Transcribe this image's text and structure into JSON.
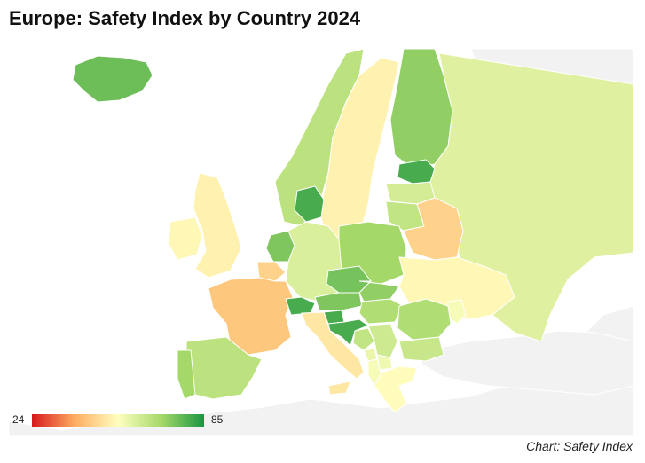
{
  "title": "Europe: Safety Index by Country 2024",
  "credit": "Chart: Safety Index",
  "legend": {
    "min_label": "24",
    "max_label": "85",
    "min": 24,
    "max": 85,
    "colors": [
      "#d7191c",
      "#fdae61",
      "#ffffbf",
      "#a6d96a",
      "#1a9641"
    ]
  },
  "colors": {
    "no_data": "#f2f2f2",
    "background": "#ffffff",
    "border": "#ffffff"
  },
  "chart_data": {
    "type": "choropleth",
    "title": "Europe: Safety Index by Country 2024",
    "scale_min": 24,
    "scale_max": 85,
    "countries": [
      {
        "name": "Iceland",
        "value": 76
      },
      {
        "name": "Norway",
        "value": 66
      },
      {
        "name": "Sweden",
        "value": 52
      },
      {
        "name": "Finland",
        "value": 72
      },
      {
        "name": "Russia",
        "value": 60
      },
      {
        "name": "Estonia",
        "value": 80
      },
      {
        "name": "Latvia",
        "value": 62
      },
      {
        "name": "Lithuania",
        "value": 65
      },
      {
        "name": "Belarus",
        "value": 46
      },
      {
        "name": "Denmark",
        "value": 80
      },
      {
        "name": "United Kingdom",
        "value": 52
      },
      {
        "name": "Ireland",
        "value": 53
      },
      {
        "name": "Netherlands",
        "value": 74
      },
      {
        "name": "Belgium",
        "value": 46
      },
      {
        "name": "Germany",
        "value": 61
      },
      {
        "name": "Poland",
        "value": 70
      },
      {
        "name": "France",
        "value": 44
      },
      {
        "name": "Switzerland",
        "value": 80
      },
      {
        "name": "Austria",
        "value": 74
      },
      {
        "name": "Czech Republic",
        "value": 75
      },
      {
        "name": "Slovakia",
        "value": 72
      },
      {
        "name": "Hungary",
        "value": 68
      },
      {
        "name": "Ukraine",
        "value": 53
      },
      {
        "name": "Moldova",
        "value": 56
      },
      {
        "name": "Romania",
        "value": 68
      },
      {
        "name": "Bulgaria",
        "value": 64
      },
      {
        "name": "Slovenia",
        "value": 80
      },
      {
        "name": "Croatia",
        "value": 80
      },
      {
        "name": "Bosnia and Herzegovina",
        "value": 65
      },
      {
        "name": "Serbia",
        "value": 63
      },
      {
        "name": "Montenegro",
        "value": 58
      },
      {
        "name": "Albania",
        "value": 56
      },
      {
        "name": "North Macedonia",
        "value": 57
      },
      {
        "name": "Greece",
        "value": 54
      },
      {
        "name": "Italy",
        "value": 50
      },
      {
        "name": "Spain",
        "value": 66
      },
      {
        "name": "Portugal",
        "value": 70
      }
    ]
  }
}
